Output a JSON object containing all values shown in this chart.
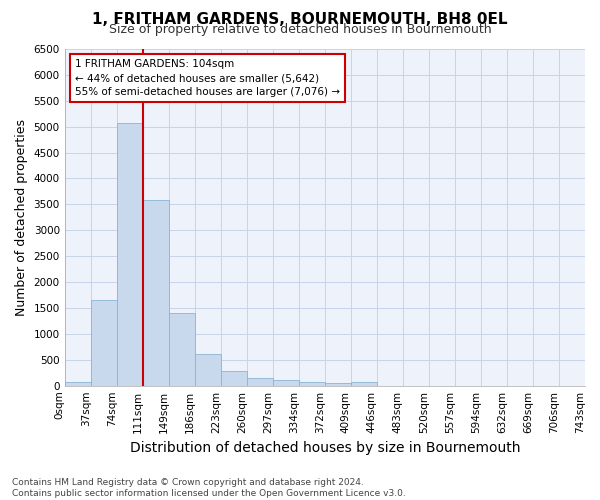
{
  "title": "1, FRITHAM GARDENS, BOURNEMOUTH, BH8 0EL",
  "subtitle": "Size of property relative to detached houses in Bournemouth",
  "xlabel": "Distribution of detached houses by size in Bournemouth",
  "ylabel": "Number of detached properties",
  "footnote1": "Contains HM Land Registry data © Crown copyright and database right 2024.",
  "footnote2": "Contains public sector information licensed under the Open Government Licence v3.0.",
  "bar_values": [
    75,
    1650,
    5070,
    3590,
    1410,
    610,
    290,
    140,
    105,
    80,
    55,
    75,
    0,
    0,
    0,
    0,
    0,
    0,
    0,
    0
  ],
  "bin_labels": [
    "0sqm",
    "37sqm",
    "74sqm",
    "111sqm",
    "149sqm",
    "186sqm",
    "223sqm",
    "260sqm",
    "297sqm",
    "334sqm",
    "372sqm",
    "409sqm",
    "446sqm",
    "483sqm",
    "520sqm",
    "557sqm",
    "594sqm",
    "632sqm",
    "669sqm",
    "706sqm",
    "743sqm"
  ],
  "bar_color": "#c9d9ed",
  "bar_edge_color": "#8ab4d4",
  "vline_x": 2.5,
  "vline_color": "#cc0000",
  "annotation_title": "1 FRITHAM GARDENS: 104sqm",
  "annotation_line1": "← 44% of detached houses are smaller (5,642)",
  "annotation_line2": "55% of semi-detached houses are larger (7,076) →",
  "annotation_box_color": "#cc0000",
  "ylim": [
    0,
    6500
  ],
  "yticks": [
    0,
    500,
    1000,
    1500,
    2000,
    2500,
    3000,
    3500,
    4000,
    4500,
    5000,
    5500,
    6000,
    6500
  ],
  "grid_color": "#c8d4e8",
  "background_color": "#eef2fa",
  "title_fontsize": 11,
  "subtitle_fontsize": 9,
  "axis_label_fontsize": 9,
  "tick_fontsize": 7.5,
  "annotation_fontsize": 7.5
}
